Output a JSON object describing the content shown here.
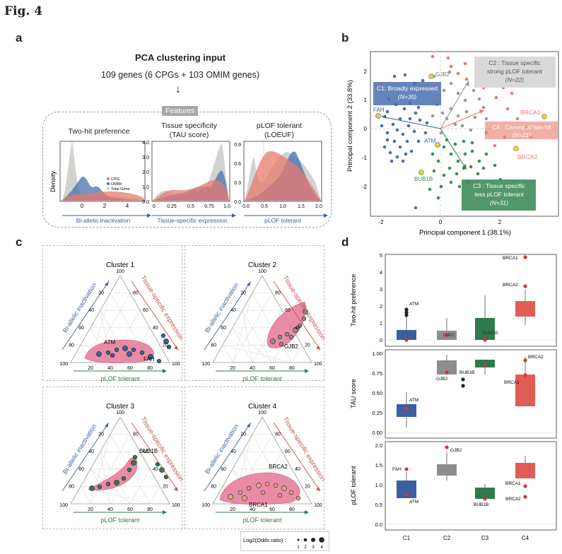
{
  "figure_title": "Fig. 4",
  "panel_labels": {
    "a": "a",
    "b": "b",
    "c": "c",
    "d": "d"
  },
  "panel_a": {
    "title": "PCA clustering input",
    "subtitle": "109 genes (6 CPGs + 103 OMIM genes)",
    "arrow": "↓",
    "features_label": "Features",
    "y_label": "Density",
    "legend": [
      "CPG",
      "OMIM",
      "Total Gene"
    ],
    "colors": {
      "CPG": "#e8796d",
      "OMIM": "#4a6fb0",
      "Total Gene": "#c9ccc6"
    },
    "subplots": [
      {
        "title": "Two-hit preference",
        "title2": "",
        "xlabel": "Bi-allelic inactivation",
        "xticks": [
          "0",
          "2",
          "4"
        ],
        "yticks": []
      },
      {
        "title": "Tissue specificity",
        "title2": "(TAU score)",
        "xlabel": "Tissue-specific expression",
        "xticks": [
          "0",
          "0.25",
          "0.5",
          "0.75",
          "1.0"
        ],
        "yticks": [
          "0.0",
          "1.0",
          "2.0",
          "3.0",
          "4.0"
        ]
      },
      {
        "title": "pLOF tolerant",
        "title2": "(LOEUF)",
        "xlabel": "pLOF tolerant",
        "xticks": [
          "0.0",
          "0.5",
          "1.0",
          "1.5",
          "2.0"
        ],
        "yticks": [
          "0.0",
          "0.3",
          "0.6",
          "0.9"
        ]
      }
    ]
  },
  "panel_b": {
    "xlabel": "Principal component 1 (38.1%)",
    "ylabel": "Principal component 2 (33.8%)",
    "xticks": [
      "-2",
      "0",
      "2"
    ],
    "yticks": [
      "-2",
      "-1",
      "0",
      "1",
      "2"
    ],
    "clusters": [
      {
        "name": "C1: Broadly expressed",
        "n": "(N=35)",
        "color": "#4a6fb0"
      },
      {
        "name": "C2 : Tissue specific",
        "name2": "strong pLOF tolerant",
        "n": "(N=22)",
        "color": "#9a9a9a"
      },
      {
        "name": "C3 : Tissue specific",
        "name2": "less pLOF tolerant",
        "n": "(N=31)",
        "color": "#3f8c5a"
      },
      {
        "name": "C4 : Canonical two-hit",
        "n": "(N=21)",
        "color": "#e8796d"
      }
    ],
    "genes": [
      "GJB2",
      "FAH",
      "ATM",
      "BUB1B",
      "BRCA1",
      "BRCA2"
    ]
  },
  "panel_c": {
    "clusters": [
      "Cluster 1",
      "Cluster 2",
      "Cluster 3",
      "Cluster 4"
    ],
    "axes": {
      "left": "Bi-allelic inactivation",
      "right": "Tissue-specific expression",
      "bottom": "pLOF tolerant"
    },
    "ticks": [
      "20",
      "40",
      "60",
      "80"
    ],
    "corner_top": "100",
    "corner_left": "100",
    "corner_right": "100",
    "genes": [
      [
        "ATM",
        "FAH"
      ],
      [
        "GJB2"
      ],
      [
        "BUB1B"
      ],
      [
        "BRCA2",
        "BRCA1"
      ]
    ],
    "legend_title": "Log2(Odds ratio) :",
    "legend_sizes": [
      "1",
      "2",
      "3",
      "4"
    ]
  },
  "panel_d": {
    "categories": [
      "C1",
      "C2",
      "C3",
      "C4"
    ],
    "colors": [
      "#3b5fa0",
      "#8d8d8d",
      "#2f7a4c",
      "#e05d55"
    ],
    "rows": [
      {
        "ylabel": "Two-hit preference",
        "yticks": [
          "0",
          "1",
          "2",
          "3",
          "4",
          "5"
        ],
        "labels": [
          "ATM",
          "GJB2",
          "BUB1B",
          "BRCA1",
          "BRCA2"
        ]
      },
      {
        "ylabel": "TAU score",
        "yticks": [
          "0.00",
          "0.25",
          "0.50",
          "0.75",
          "1.00"
        ],
        "labels": [
          "ATM",
          "GJB2",
          "BUB1B",
          "BRCA2",
          "BRCA1"
        ]
      },
      {
        "ylabel": "pLOF tolerant",
        "yticks": [
          "0.0",
          "0.5",
          "1.0",
          "1.5",
          "2.0"
        ],
        "labels": [
          "FAH",
          "ATM",
          "GJB2",
          "BUB1B",
          "BRCA1",
          "BRCA2"
        ]
      }
    ]
  }
}
